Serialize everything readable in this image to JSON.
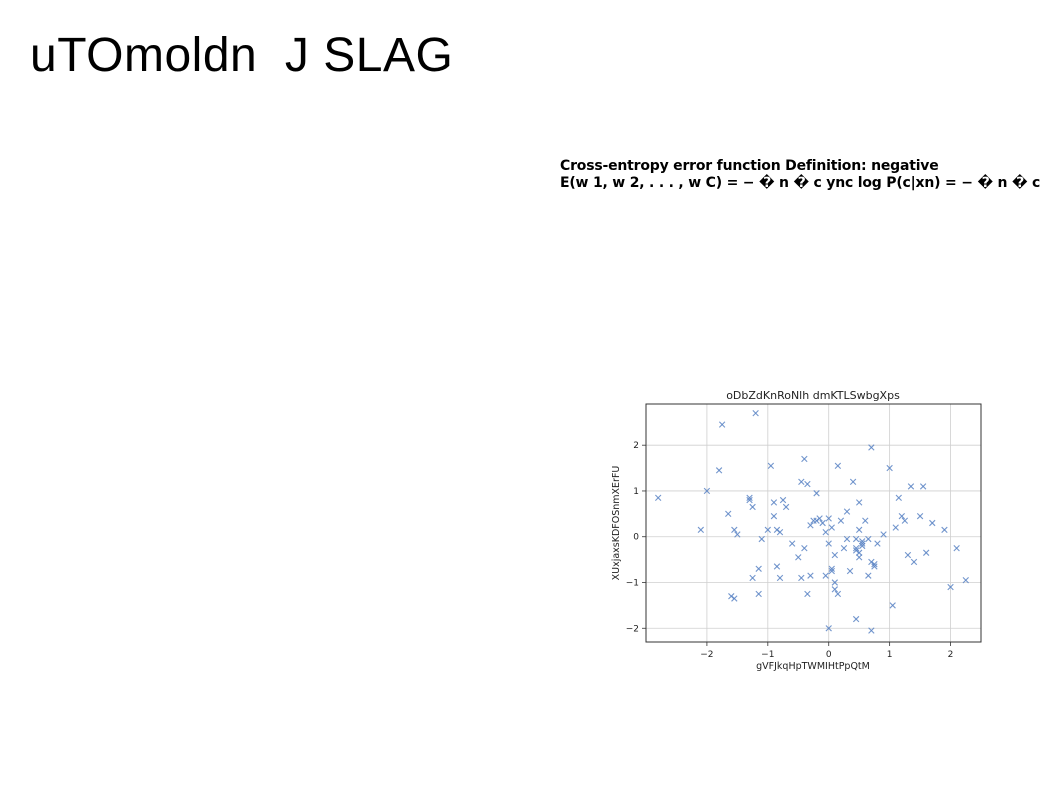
{
  "slide": {
    "title": "uTOmoldn  J SLAG",
    "definition_line1": "Cross-entropy error function Definition: negative",
    "definition_line2": "E(w 1, w 2, . . . , w C) = − � n � c ync log P(c|xn) = − � n � c"
  },
  "colors": {
    "marker": "#5b84c4",
    "grid": "#cfcfcf",
    "axis": "#333333"
  },
  "chart_data": {
    "type": "scatter",
    "title": "oDbZdKnRoNlh dmKTLSwbgXps",
    "xlabel": "gVFJkqHpTWMIHtPpQtM",
    "ylabel": "XUxjaxsKDFOSnmXErFU",
    "xlim": [
      -3.0,
      2.5
    ],
    "ylim": [
      -2.3,
      2.9
    ],
    "xticks": [
      -2,
      -1,
      0,
      1,
      2
    ],
    "yticks": [
      -2,
      -1,
      0,
      1,
      2
    ],
    "xtick_labels": [
      "−2",
      "−1",
      "0",
      "1",
      "2"
    ],
    "ytick_labels": [
      "−2",
      "−1",
      "0",
      "1",
      "2"
    ],
    "grid": true,
    "marker": "x",
    "x": [
      -1.2,
      -1.75,
      -1.8,
      -2.0,
      -2.8,
      -2.1,
      -1.65,
      -1.55,
      -1.5,
      -1.6,
      -1.55,
      -1.3,
      -1.3,
      -1.25,
      -1.15,
      -1.1,
      -1.25,
      -1.15,
      -0.95,
      -1.0,
      -0.9,
      -0.9,
      -0.85,
      -0.8,
      -0.8,
      -0.85,
      -0.75,
      -0.7,
      -0.6,
      -0.45,
      -0.4,
      -0.35,
      -0.3,
      -0.25,
      -0.2,
      -0.15,
      -0.1,
      -0.05,
      0.0,
      0.05,
      0.1,
      0.15,
      0.2,
      0.25,
      0.3,
      0.35,
      0.4,
      0.45,
      0.5,
      0.55,
      0.6,
      0.65,
      0.7,
      0.75,
      0.8,
      0.9,
      1.0,
      1.05,
      1.1,
      1.15,
      1.2,
      1.25,
      1.3,
      1.35,
      1.4,
      1.5,
      1.55,
      1.6,
      1.7,
      1.9,
      2.0,
      2.1,
      2.25,
      -0.4,
      -0.5,
      -0.45,
      -0.35,
      -0.3,
      -0.2,
      -0.05,
      0.0,
      0.05,
      0.1,
      0.15,
      0.45,
      0.5,
      0.55,
      0.45,
      0.55,
      0.65,
      0.7,
      0.75,
      0.45,
      0.5,
      0.1,
      0.05,
      0.0,
      0.5,
      0.7,
      0.3
    ],
    "y": [
      2.7,
      2.45,
      1.45,
      1.0,
      0.85,
      0.15,
      0.5,
      0.15,
      0.05,
      -1.3,
      -1.35,
      0.85,
      0.8,
      -0.9,
      -1.25,
      -0.05,
      0.65,
      -0.7,
      1.55,
      0.15,
      0.75,
      0.45,
      0.15,
      0.1,
      -0.9,
      -0.65,
      0.8,
      0.65,
      -0.15,
      1.2,
      1.7,
      1.15,
      0.25,
      0.35,
      0.95,
      0.4,
      0.3,
      0.1,
      -0.15,
      0.2,
      -0.4,
      1.55,
      0.35,
      -0.25,
      0.55,
      -0.75,
      1.2,
      -0.05,
      0.75,
      -0.15,
      0.35,
      -0.05,
      1.95,
      -0.6,
      -0.15,
      0.05,
      1.5,
      -1.5,
      0.2,
      0.85,
      0.45,
      0.35,
      -0.4,
      1.1,
      -0.55,
      0.45,
      1.1,
      -0.35,
      0.3,
      0.15,
      -1.1,
      -0.25,
      -0.95,
      -0.25,
      -0.45,
      -0.9,
      -1.25,
      -0.85,
      0.35,
      -0.85,
      0.4,
      -0.75,
      -1.0,
      -1.25,
      -0.3,
      -0.45,
      -0.2,
      -1.8,
      -0.1,
      -0.85,
      -0.55,
      -0.65,
      -0.25,
      -0.35,
      -1.15,
      -0.7,
      -2.0,
      0.15,
      -2.05,
      -0.05
    ]
  }
}
